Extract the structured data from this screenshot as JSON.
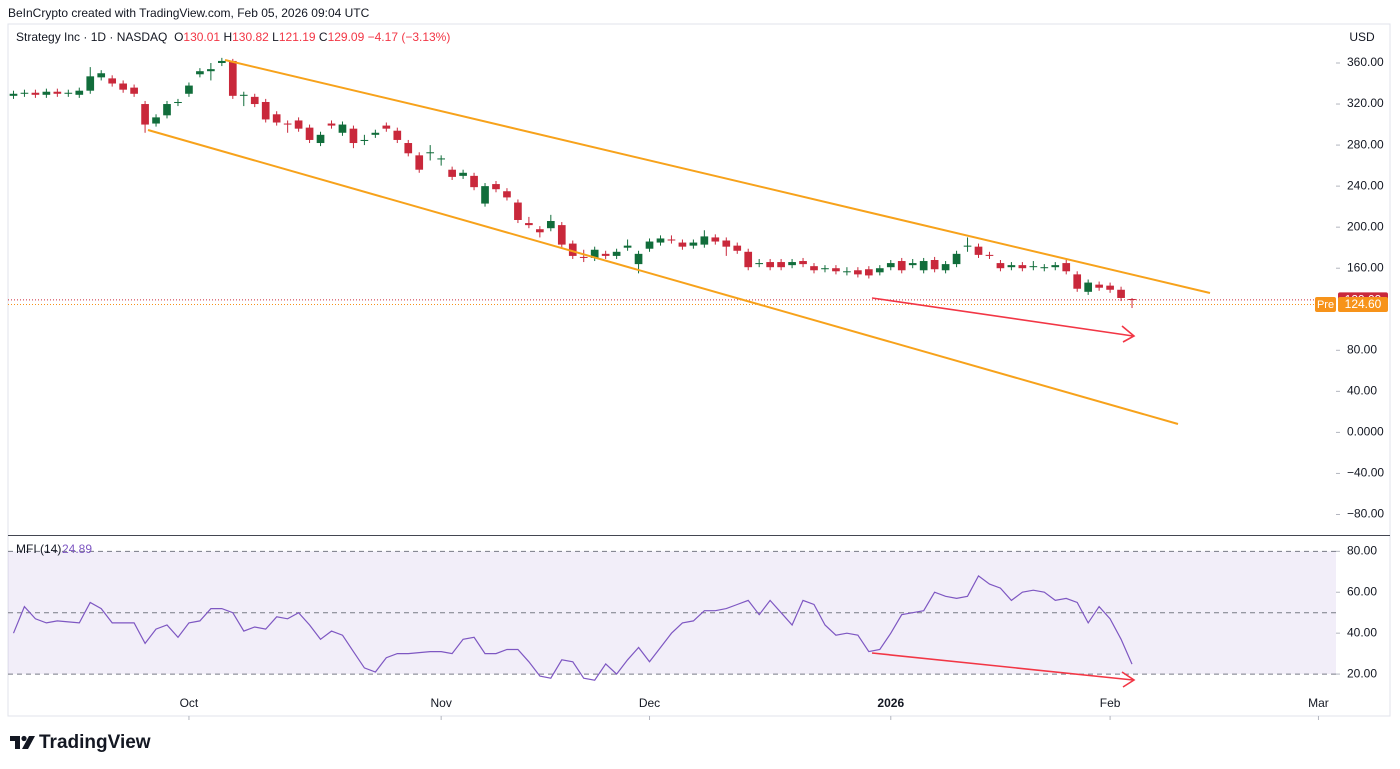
{
  "header": {
    "attribution": "BeInCrypto created with TradingView.com, Feb 05, 2026 09:04 UTC",
    "symbol": "Strategy Inc · 1D · NASDAQ",
    "ohlc_letters": [
      "O",
      "H",
      "L",
      "C"
    ],
    "change": "−4.17 (−3.13%)",
    "currency": "USD"
  },
  "chart_data": [
    {
      "type": "candlestick",
      "up_color": "#116d3b",
      "down_color": "#c9283b",
      "open": [
        328,
        330,
        331,
        329,
        332,
        330,
        329,
        333,
        346,
        345,
        340,
        336,
        320,
        301,
        309,
        321,
        330,
        349,
        352,
        360,
        362,
        328,
        327,
        322,
        310,
        301,
        304,
        297,
        282,
        301,
        292,
        296,
        284,
        290,
        299,
        294,
        282,
        270,
        272,
        266,
        256,
        250,
        250,
        223,
        242,
        235,
        224,
        204,
        198,
        199,
        202,
        184,
        171,
        170,
        174,
        172,
        180,
        164,
        179,
        185,
        188,
        185,
        182,
        183,
        190,
        187,
        182,
        176,
        164,
        166,
        166,
        163,
        167,
        162,
        159,
        160,
        157,
        158,
        159,
        156,
        161,
        167,
        163,
        158,
        168,
        158,
        164,
        181,
        181,
        173,
        165,
        161,
        163,
        162,
        160,
        161,
        165,
        154,
        137,
        144,
        143,
        139,
        130.01
      ],
      "high": [
        333,
        334,
        334,
        335,
        335,
        334,
        336,
        356,
        353,
        348,
        343,
        339,
        323,
        310,
        323,
        325,
        341,
        355,
        360,
        365,
        364,
        332,
        330,
        325,
        313,
        304,
        307,
        300,
        293,
        304,
        303,
        299,
        290,
        295,
        302,
        297,
        285,
        273,
        280,
        270,
        259,
        256,
        253,
        243,
        245,
        238,
        227,
        210,
        201,
        212,
        205,
        187,
        178,
        181,
        177,
        179,
        188,
        177,
        189,
        192,
        192,
        188,
        188,
        197,
        193,
        190,
        185,
        179,
        169,
        169,
        169,
        169,
        170,
        165,
        163,
        163,
        161,
        161,
        162,
        163,
        168,
        170,
        169,
        170,
        171,
        167,
        177,
        190,
        184,
        176,
        168,
        166,
        166,
        167,
        164,
        166,
        168,
        157,
        149,
        147,
        146,
        142,
        130.82
      ],
      "low": [
        325,
        327,
        326,
        326,
        327,
        327,
        326,
        330,
        343,
        337,
        331,
        327,
        292,
        298,
        306,
        318,
        327,
        346,
        343,
        357,
        325,
        318,
        317,
        302,
        299,
        292,
        293,
        282,
        279,
        296,
        289,
        277,
        280,
        287,
        293,
        282,
        269,
        253,
        265,
        260,
        246,
        247,
        236,
        220,
        234,
        226,
        204,
        199,
        190,
        196,
        180,
        169,
        166,
        167,
        169,
        169,
        177,
        155,
        176,
        182,
        184,
        178,
        179,
        180,
        183,
        172,
        174,
        158,
        161,
        158,
        158,
        160,
        161,
        155,
        156,
        154,
        153,
        151,
        150,
        153,
        158,
        155,
        160,
        155,
        156,
        155,
        161,
        176,
        170,
        169,
        157,
        158,
        157,
        158,
        157,
        158,
        154,
        137,
        134,
        138,
        136,
        128,
        121.19
      ],
      "close": [
        330,
        331,
        329,
        332,
        330,
        331,
        333,
        347,
        350,
        340,
        334,
        330,
        300,
        307,
        320,
        322,
        338,
        352,
        354,
        362,
        328,
        329,
        320,
        305,
        302,
        300,
        296,
        285,
        290,
        299,
        300,
        282,
        285,
        292,
        296,
        285,
        272,
        256,
        273,
        267,
        249,
        253,
        239,
        240,
        237,
        229,
        207,
        202,
        195,
        206,
        183,
        172,
        170,
        178,
        172,
        176,
        182,
        174,
        186,
        189,
        187,
        181,
        185,
        191,
        186,
        181,
        177,
        161,
        165,
        161,
        161,
        166,
        164,
        158,
        160,
        157,
        157,
        154,
        153,
        160,
        165,
        158,
        165,
        167,
        159,
        164,
        174,
        182,
        173,
        172,
        160,
        163,
        160,
        162,
        161,
        163,
        157,
        140,
        146,
        141,
        139,
        131,
        129.09
      ],
      "xlim": [
        -0.5,
        120.6
      ],
      "xticks": [
        {
          "value": 16,
          "label": "Oct"
        },
        {
          "value": 39,
          "label": "Nov"
        },
        {
          "value": 58,
          "label": "Dec"
        },
        {
          "value": 80,
          "label": "2026"
        },
        {
          "value": 100,
          "label": "Feb"
        },
        {
          "value": 119,
          "label": "Mar"
        }
      ],
      "ylim": [
        -100,
        398
      ],
      "yticks": [
        {
          "value": 360,
          "label": "360.00"
        },
        {
          "value": 320,
          "label": "320.00"
        },
        {
          "value": 280,
          "label": "280.00"
        },
        {
          "value": 240,
          "label": "240.00"
        },
        {
          "value": 200,
          "label": "200.00"
        },
        {
          "value": 160,
          "label": "160.00"
        },
        {
          "value": 80,
          "label": "80.00"
        },
        {
          "value": 40,
          "label": "40.00"
        },
        {
          "value": 0,
          "label": "0.0000"
        },
        {
          "value": -40,
          "label": "−40.00"
        },
        {
          "value": -80,
          "label": "−80.00"
        }
      ],
      "grid": false,
      "premarket": {
        "tag": "Pre",
        "value": 124.6,
        "value_label": "124.60",
        "color": "#f7931a"
      }
    },
    {
      "type": "line",
      "name": "MFI (14)",
      "color": "#7e57c2",
      "values": [
        40,
        53,
        47,
        45,
        46,
        45.5,
        45,
        55,
        52,
        45,
        45,
        45,
        35,
        42,
        44,
        38,
        45,
        46,
        52,
        52,
        50,
        41,
        43,
        42,
        48,
        47,
        50,
        44,
        37,
        41,
        39,
        31,
        23,
        21,
        28,
        30,
        30,
        30.5,
        31,
        31,
        30,
        37,
        38,
        30,
        30,
        32,
        32,
        26,
        19,
        18,
        27,
        26,
        18,
        17,
        25,
        20,
        27,
        33,
        26,
        33,
        40,
        45,
        46,
        51,
        51,
        52,
        54,
        56,
        49,
        56,
        50,
        44,
        56,
        54,
        44,
        39,
        40,
        39,
        31,
        32,
        40,
        49,
        50,
        51,
        60,
        58,
        57,
        58,
        68,
        64,
        62,
        56,
        60,
        61,
        60,
        56,
        57,
        55,
        45,
        53,
        47,
        37,
        24.89
      ],
      "ylim": [
        0,
        87
      ],
      "yticks": [
        {
          "value": 80,
          "label": "80.00"
        },
        {
          "value": 60,
          "label": "60.00"
        },
        {
          "value": 40,
          "label": "40.00"
        },
        {
          "value": 20,
          "label": "20.00"
        }
      ],
      "bands": [
        20,
        50,
        80
      ]
    }
  ],
  "footer": {
    "brand": "TradingView"
  }
}
